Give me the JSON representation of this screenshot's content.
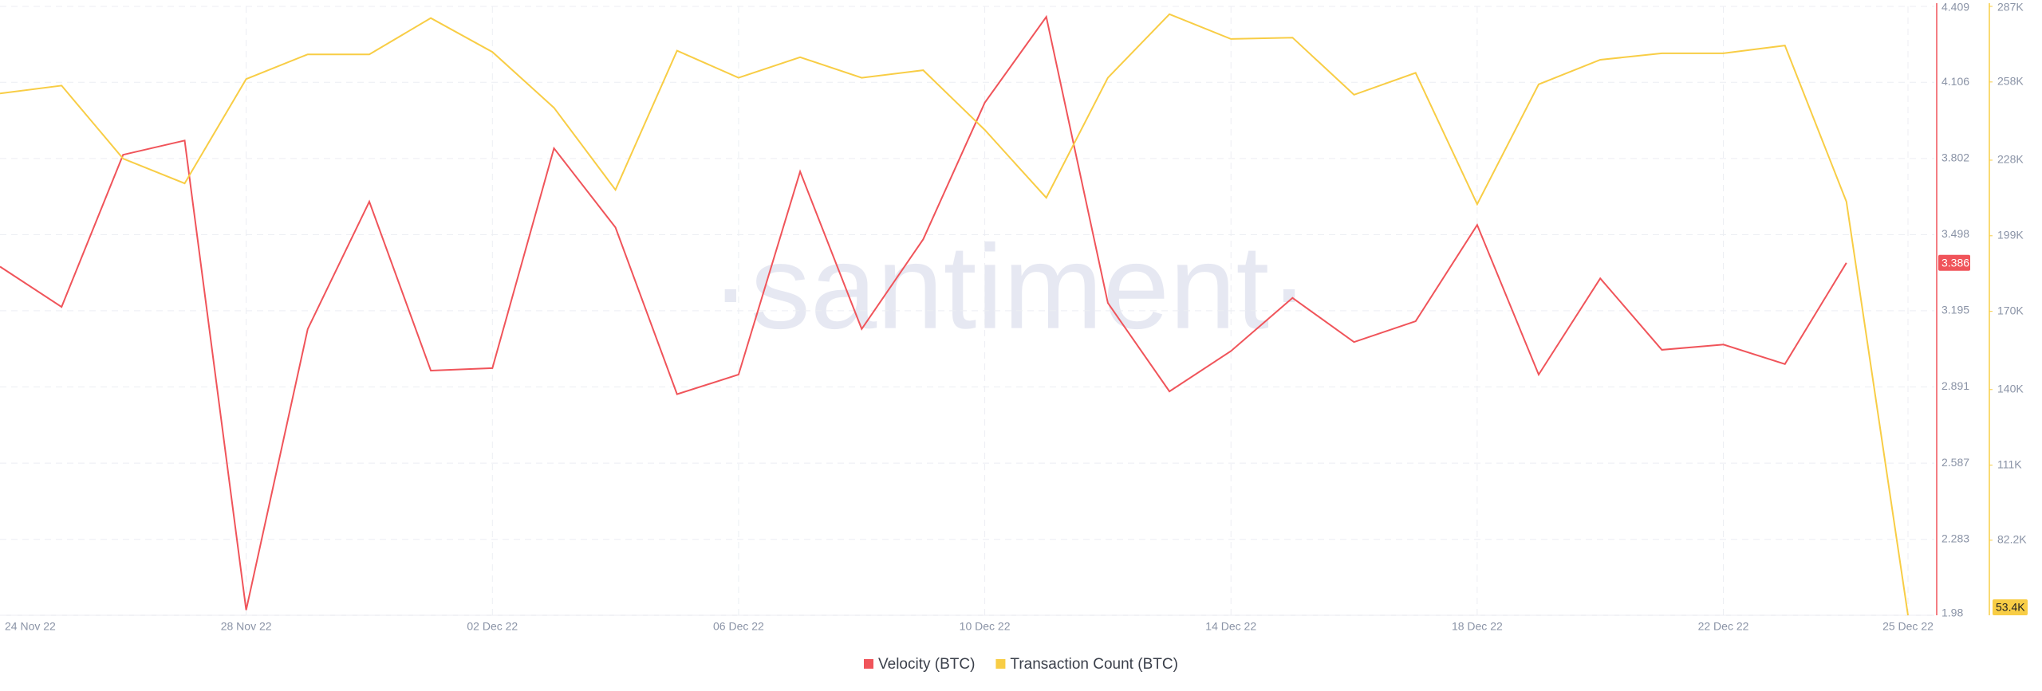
{
  "chart_data": {
    "type": "line",
    "watermark": "·santiment·",
    "categories": [
      "24 Nov 22",
      null,
      null,
      null,
      "28 Nov 22",
      null,
      null,
      null,
      "02 Dec 22",
      null,
      null,
      null,
      "06 Dec 22",
      null,
      null,
      null,
      "10 Dec 22",
      null,
      null,
      null,
      "14 Dec 22",
      null,
      null,
      null,
      "18 Dec 22",
      null,
      null,
      null,
      "22 Dec 22",
      null,
      null,
      "25 Dec 22"
    ],
    "series": [
      {
        "name": "Velocity (BTC)",
        "color": "#f0545a",
        "axis": "y",
        "values": [
          3.371,
          3.21,
          3.817,
          3.874,
          2.001,
          3.122,
          3.63,
          2.956,
          2.966,
          3.843,
          3.527,
          2.862,
          2.94,
          3.75,
          3.122,
          3.48,
          4.025,
          4.367,
          3.226,
          2.873,
          3.034,
          3.246,
          3.07,
          3.153,
          3.537,
          2.94,
          3.324,
          3.039,
          3.06,
          2.982,
          3.386,
          null
        ]
      },
      {
        "name": "Transaction Count (BTC)",
        "color": "#f8cd45",
        "axis": "y2",
        "values": [
          253600,
          256600,
          228600,
          219100,
          259100,
          268600,
          268600,
          282500,
          269500,
          248100,
          216600,
          270000,
          259600,
          267500,
          259600,
          262500,
          239600,
          213600,
          259600,
          284000,
          274500,
          275000,
          253100,
          261500,
          211100,
          257100,
          266500,
          269000,
          269000,
          272000,
          212100,
          53400
        ]
      }
    ],
    "ylim": [
      1.98,
      4.409
    ],
    "yticks": [
      1.98,
      2.283,
      2.587,
      2.891,
      3.195,
      3.498,
      3.802,
      4.106,
      4.409
    ],
    "y2lim": [
      53400,
      287000
    ],
    "y2ticks": [
      {
        "value": 82200,
        "label": "82.2K"
      },
      {
        "value": 111000,
        "label": "111K"
      },
      {
        "value": 140000,
        "label": "140K"
      },
      {
        "value": 170000,
        "label": "170K"
      },
      {
        "value": 199000,
        "label": "199K"
      },
      {
        "value": 228000,
        "label": "228K"
      },
      {
        "value": 258000,
        "label": "258K"
      },
      {
        "value": 287000,
        "label": "287K"
      }
    ],
    "annotations": [
      {
        "text": "3.386",
        "value": 3.386,
        "axis": "y"
      },
      {
        "text": "53.4K",
        "value": 53400,
        "axis": "y2"
      }
    ],
    "grid": true
  }
}
